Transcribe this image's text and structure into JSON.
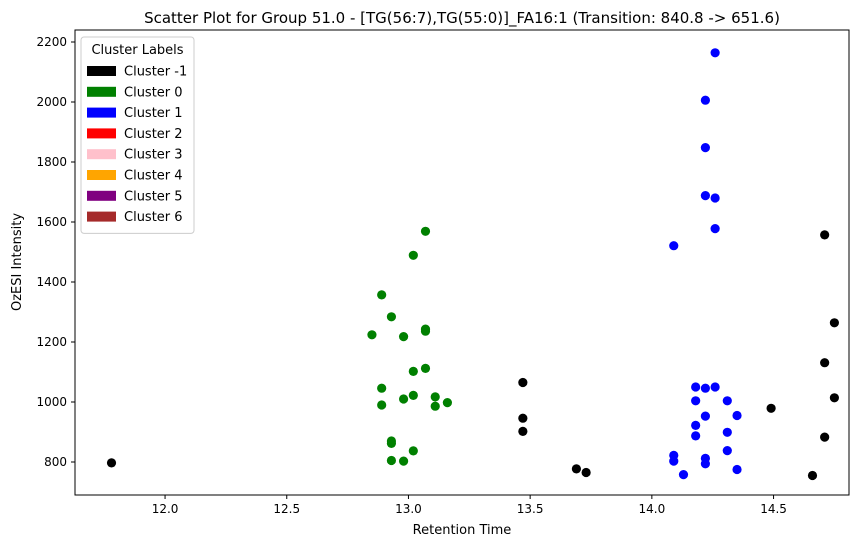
{
  "chart_data": {
    "type": "scatter",
    "title": "Scatter Plot for Group 51.0 - [TG(56:7),TG(55:0)]_FA16:1 (Transition: 840.8 -> 651.6)",
    "xlabel": "Retention Time",
    "ylabel": "OzESI Intensity",
    "xlim": [
      11.63,
      14.81
    ],
    "ylim": [
      690,
      2240
    ],
    "xticks": [
      12.0,
      12.5,
      13.0,
      13.5,
      14.0,
      14.5
    ],
    "yticks": [
      800,
      1000,
      1200,
      1400,
      1600,
      1800,
      2000,
      2200
    ],
    "xtick_labels": [
      "12.0",
      "12.5",
      "13.0",
      "13.5",
      "14.0",
      "14.5"
    ],
    "ytick_labels": [
      "800",
      "1000",
      "1200",
      "1400",
      "1600",
      "1800",
      "2000",
      "2200"
    ],
    "grid": false,
    "legend": {
      "title": "Cluster Labels",
      "position": "top-left",
      "entries": [
        {
          "label": "Cluster -1",
          "color": "#000000"
        },
        {
          "label": "Cluster 0",
          "color": "#008000"
        },
        {
          "label": "Cluster 1",
          "color": "#0000ff"
        },
        {
          "label": "Cluster 2",
          "color": "#ff0000"
        },
        {
          "label": "Cluster 3",
          "color": "#ffc0cb"
        },
        {
          "label": "Cluster 4",
          "color": "#ffa500"
        },
        {
          "label": "Cluster 5",
          "color": "#800080"
        },
        {
          "label": "Cluster 6",
          "color": "#a52a2a"
        }
      ]
    },
    "series": [
      {
        "name": "Cluster -1",
        "color": "#000000",
        "points": [
          [
            11.78,
            797
          ],
          [
            13.47,
            1065
          ],
          [
            13.47,
            946
          ],
          [
            13.47,
            902
          ],
          [
            13.69,
            777
          ],
          [
            13.73,
            765
          ],
          [
            14.49,
            979
          ],
          [
            14.66,
            755
          ],
          [
            14.71,
            1557
          ],
          [
            14.71,
            1131
          ],
          [
            14.71,
            883
          ],
          [
            14.75,
            1264
          ],
          [
            14.75,
            1014
          ]
        ]
      },
      {
        "name": "Cluster 0",
        "color": "#008000",
        "points": [
          [
            12.85,
            1224
          ],
          [
            12.89,
            1357
          ],
          [
            12.89,
            1046
          ],
          [
            12.89,
            990
          ],
          [
            12.93,
            1284
          ],
          [
            12.93,
            870
          ],
          [
            12.93,
            862
          ],
          [
            12.93,
            805
          ],
          [
            12.98,
            1218
          ],
          [
            12.98,
            1010
          ],
          [
            12.98,
            803
          ],
          [
            13.02,
            1489
          ],
          [
            13.02,
            1102
          ],
          [
            13.02,
            1022
          ],
          [
            13.02,
            837
          ],
          [
            13.07,
            1569
          ],
          [
            13.07,
            1243
          ],
          [
            13.07,
            1236
          ],
          [
            13.07,
            1112
          ],
          [
            13.11,
            1017
          ],
          [
            13.11,
            986
          ],
          [
            13.16,
            998
          ]
        ]
      },
      {
        "name": "Cluster 1",
        "color": "#0000ff",
        "points": [
          [
            14.09,
            1521
          ],
          [
            14.09,
            822
          ],
          [
            14.09,
            803
          ],
          [
            14.13,
            758
          ],
          [
            14.18,
            1050
          ],
          [
            14.18,
            1004
          ],
          [
            14.18,
            922
          ],
          [
            14.18,
            887
          ],
          [
            14.22,
            2006
          ],
          [
            14.22,
            1848
          ],
          [
            14.22,
            1688
          ],
          [
            14.22,
            1046
          ],
          [
            14.22,
            953
          ],
          [
            14.22,
            812
          ],
          [
            14.22,
            794
          ],
          [
            14.26,
            2164
          ],
          [
            14.26,
            1680
          ],
          [
            14.26,
            1578
          ],
          [
            14.26,
            1050
          ],
          [
            14.31,
            1004
          ],
          [
            14.31,
            899
          ],
          [
            14.31,
            838
          ],
          [
            14.35,
            955
          ],
          [
            14.35,
            775
          ]
        ]
      }
    ]
  }
}
